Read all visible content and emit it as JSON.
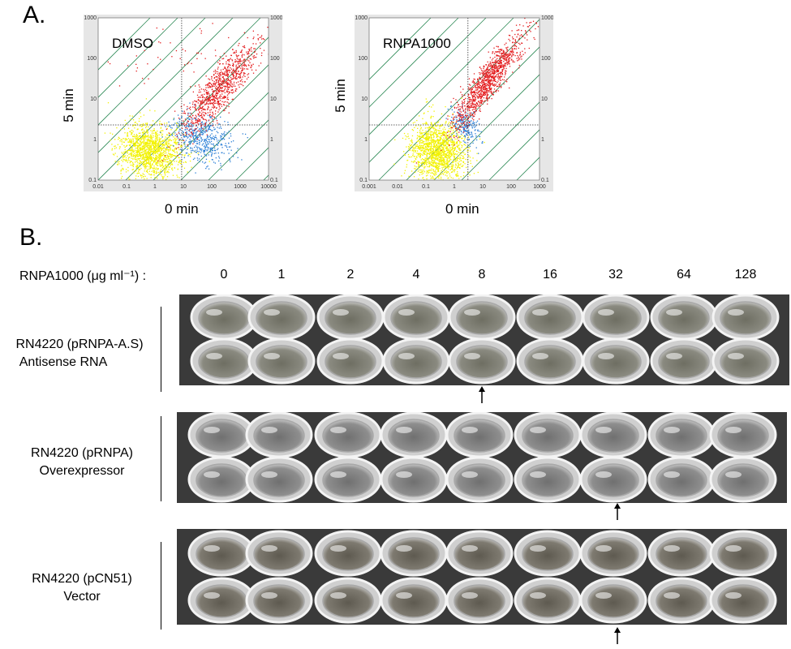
{
  "panel_a": {
    "label": "A.",
    "plots": [
      {
        "title": "DMSO",
        "x_label": "0 min",
        "y_label": "5 min",
        "x_ticks": [
          "0.01",
          "0.1",
          "1",
          "10",
          "100",
          "1000",
          "10000"
        ],
        "y_ticks_left": [
          "0.1",
          "1",
          "10",
          "100",
          "1000"
        ],
        "y_ticks_right": [
          "0.1",
          "1",
          "10",
          "100",
          "1000"
        ]
      },
      {
        "title": "RNPA1000",
        "x_label": "0 min",
        "y_label": "5 min",
        "x_ticks": [
          "0.001",
          "0.01",
          "0.1",
          "1",
          "10",
          "100",
          "1000"
        ],
        "y_ticks_left": [
          "0.1",
          "1",
          "10",
          "100",
          "1000"
        ],
        "y_ticks_right": [
          "0.1",
          "1",
          "10",
          "100",
          "1000"
        ]
      }
    ],
    "colors": {
      "red": "#e31a1c",
      "blue": "#2b7fd6",
      "yellow": "#f2f200",
      "line": "#2e8b57"
    }
  },
  "panel_b": {
    "label": "B.",
    "concentration_header": "RNPA1000 (μg ml⁻¹) :",
    "concentrations": [
      "0",
      "1",
      "2",
      "4",
      "8",
      "16",
      "32",
      "64",
      "128"
    ],
    "strains": [
      {
        "line1": "RN4220 (pRNPA-A.S)",
        "line2": "Antisense RNA",
        "mic_index": 4
      },
      {
        "line1": "RN4220 (pRNPA)",
        "line2": "Overexpressor",
        "mic_index": 6
      },
      {
        "line1": "RN4220 (pCN51)",
        "line2": "Vector",
        "mic_index": 6
      }
    ]
  }
}
